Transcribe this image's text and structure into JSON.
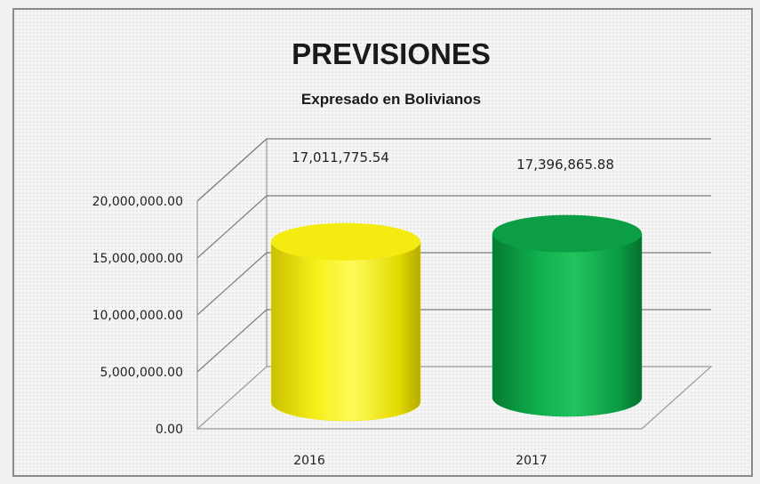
{
  "colors": {
    "series_2016": "#f2ea00",
    "series_2017": "#0aa84a"
  },
  "chart_data": {
    "type": "bar",
    "style": "3d-cylinder",
    "title": "PREVISIONES",
    "subtitle": "Expresado en Bolivianos",
    "xlabel": "",
    "ylabel": "",
    "categories": [
      "2016",
      "2017"
    ],
    "values": [
      17011775.54,
      17396865.88
    ],
    "data_labels": [
      "17,011,775.54",
      "17,396,865.88"
    ],
    "ylim": [
      0,
      20000000
    ],
    "yticks": [
      0,
      5000000,
      10000000,
      15000000,
      20000000
    ],
    "ytick_labels": [
      "0.00",
      "5,000,000.00",
      "10,000,000.00",
      "15,000,000.00",
      "20,000,000.00"
    ],
    "grid": true,
    "legend": "none"
  }
}
